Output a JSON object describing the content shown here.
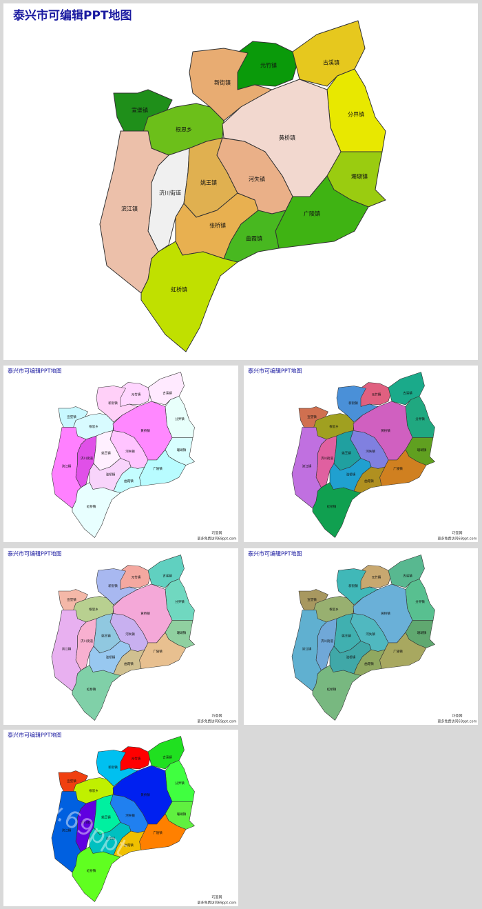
{
  "title": "泰兴市可编辑PPT地图",
  "regions": [
    "元竹镇",
    "古溪镇",
    "新街镇",
    "宣堡镇",
    "根思乡",
    "分界镇",
    "黄桥镇",
    "济川街道",
    "姚王镇",
    "河失镇",
    "珊瑚镇",
    "滨江镇",
    "张桥镇",
    "广陵镇",
    "曲霞镇",
    "虹桥镇"
  ],
  "slides": [
    {
      "colors": [
        "#0a9a0a",
        "#e6c81e",
        "#e8ac72",
        "#1f8f1a",
        "#6cbf1a",
        "#e8e800",
        "#f2d8cf",
        "#f0f0f0",
        "#e0b050",
        "#eab088",
        "#9acc10",
        "#ecc0aa",
        "#e8b050",
        "#3fb313",
        "#48b820",
        "#c0e000"
      ]
    },
    {
      "colors": [
        "#ffd6ff",
        "#ffeaff",
        "#ffd0f8",
        "#c8f8ff",
        "#d8fbff",
        "#e8fffb",
        "#ff88ff",
        "#e050e8",
        "#fff0ff",
        "#ffc4ff",
        "#d8ffff",
        "#ff80ff",
        "#f8d4fb",
        "#b8fcff",
        "#c4fdff",
        "#e8ffff"
      ]
    },
    {
      "colors": [
        "#e06080",
        "#1aaa8a",
        "#4a90d8",
        "#d07050",
        "#a0a020",
        "#20a880",
        "#d060c0",
        "#e060a0",
        "#20a0a0",
        "#8080e0",
        "#60a020",
        "#c070e0",
        "#20a0d0",
        "#d08020",
        "#b09020",
        "#10a050"
      ]
    },
    {
      "colors": [
        "#f4a8a0",
        "#60d0c0",
        "#a8b8f0",
        "#f4b8a8",
        "#b8d090",
        "#70d8c0",
        "#f4a8d8",
        "#f8b0d0",
        "#90c8e0",
        "#c8b0f0",
        "#90d0a0",
        "#e8b0f0",
        "#98c8f0",
        "#e8c090",
        "#d0c090",
        "#80d0a8"
      ]
    },
    {
      "colors": [
        "#c8a870",
        "#58b890",
        "#40b8b8",
        "#a89860",
        "#98b070",
        "#58c090",
        "#6ab0d8",
        "#70a8d8",
        "#40b0b0",
        "#50b8c0",
        "#60a870",
        "#60b0d0",
        "#40a8a8",
        "#a8a860",
        "#90a860",
        "#78b880"
      ]
    },
    {
      "colors": [
        "#ff0000",
        "#20e020",
        "#00c0f0",
        "#f04010",
        "#c0f000",
        "#40ff40",
        "#0020f0",
        "#6000e0",
        "#00f0a0",
        "#2080f0",
        "#60f040",
        "#0060e0",
        "#00c0c0",
        "#ff8000",
        "#f0c000",
        "#60ff20"
      ]
    }
  ],
  "footer": [
    "巧圣网",
    "更多免费访问69ppt.com"
  ],
  "watermark": "www.69ppt.com"
}
